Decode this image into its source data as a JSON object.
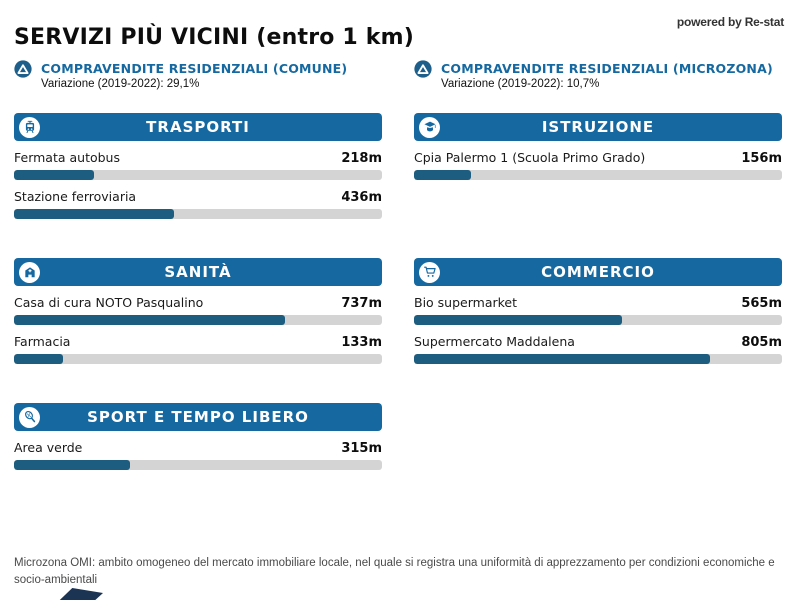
{
  "page": {
    "title": "SERVIZI PIÙ VICINI (entro 1 km)",
    "powered_by": "powered by Re-stat"
  },
  "colors": {
    "header_blue": "#1569A0",
    "bar_fill": "#1D5E80",
    "bar_track": "#D4D4D4",
    "corner_navy": "#1C3453"
  },
  "stats": [
    {
      "icon": "triangle-up-circle-icon",
      "label": "COMPRAVENDITE RESIDENZIALI (COMUNE)",
      "variation": "Variazione (2019-2022): 29,1%"
    },
    {
      "icon": "triangle-up-circle-icon",
      "label": "COMPRAVENDITE RESIDENZIALI (MICROZONA)",
      "variation": "Variazione (2019-2022): 10,7%"
    }
  ],
  "max_distance_m": 1000,
  "sections": [
    {
      "title": "TRASPORTI",
      "icon": "tram-icon",
      "column": "left",
      "items": [
        {
          "label": "Fermata autobus",
          "value": "218m",
          "distance_m": 218
        },
        {
          "label": "Stazione ferroviaria",
          "value": "436m",
          "distance_m": 436
        }
      ]
    },
    {
      "title": "ISTRUZIONE",
      "icon": "graduate-icon",
      "column": "right",
      "items": [
        {
          "label": "Cpia Palermo 1 (Scuola Primo Grado)",
          "value": "156m",
          "distance_m": 156
        }
      ]
    },
    {
      "title": "SANITÀ",
      "icon": "hospital-icon",
      "column": "left",
      "items": [
        {
          "label": "Casa di cura NOTO Pasqualino",
          "value": "737m",
          "distance_m": 737
        },
        {
          "label": "Farmacia",
          "value": "133m",
          "distance_m": 133
        }
      ]
    },
    {
      "title": "COMMERCIO",
      "icon": "shopping-cart-icon",
      "column": "right",
      "items": [
        {
          "label": "Bio supermarket",
          "value": "565m",
          "distance_m": 565
        },
        {
          "label": "Supermercato Maddalena",
          "value": "805m",
          "distance_m": 805
        }
      ]
    },
    {
      "title": "SPORT E TEMPO LIBERO",
      "icon": "tennis-racket-icon",
      "column": "left",
      "items": [
        {
          "label": "Area verde",
          "value": "315m",
          "distance_m": 315
        }
      ]
    }
  ],
  "footer": {
    "note": "Microzona OMI: ambito omogeneo del mercato immobiliare locale, nel quale si registra una uniformità di apprezzamento per condizioni economiche e socio-ambientali"
  }
}
